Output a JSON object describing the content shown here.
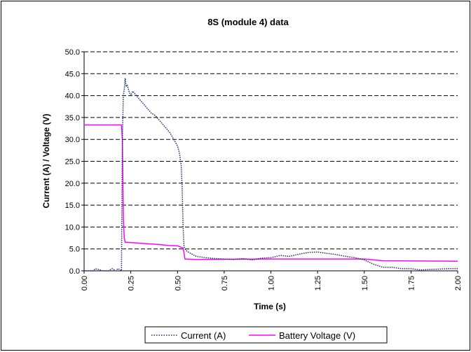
{
  "chart_data": {
    "type": "line",
    "title": "8S (module 4) data",
    "xlabel": "Time (s)",
    "ylabel": "Current (A) / Voltage (V)",
    "xlim": [
      0,
      2.0
    ],
    "ylim": [
      0,
      50
    ],
    "x_ticks": [
      "0.00",
      "0.25",
      "0.50",
      "0.75",
      "1.00",
      "1.25",
      "1.50",
      "1.75",
      "2.00"
    ],
    "y_ticks": [
      "0.0",
      "5.0",
      "10.0",
      "15.0",
      "20.0",
      "25.0",
      "30.0",
      "35.0",
      "40.0",
      "45.0",
      "50.0"
    ],
    "grid": "horizontal dashed",
    "legend_position": "bottom",
    "series": [
      {
        "name": "Current (A)",
        "color": "#1a2a6c",
        "style": "dotted",
        "x": [
          0.0,
          0.05,
          0.06,
          0.1,
          0.13,
          0.15,
          0.17,
          0.18,
          0.19,
          0.2,
          0.205,
          0.21,
          0.215,
          0.22,
          0.225,
          0.23,
          0.24,
          0.25,
          0.26,
          0.27,
          0.28,
          0.3,
          0.32,
          0.34,
          0.36,
          0.38,
          0.4,
          0.42,
          0.44,
          0.46,
          0.48,
          0.5,
          0.51,
          0.52,
          0.525,
          0.53,
          0.535,
          0.54,
          0.55,
          0.57,
          0.6,
          0.65,
          0.7,
          0.75,
          0.8,
          0.85,
          0.9,
          0.95,
          1.0,
          1.05,
          1.1,
          1.15,
          1.2,
          1.25,
          1.3,
          1.35,
          1.4,
          1.45,
          1.5,
          1.55,
          1.6,
          1.65,
          1.7,
          1.75,
          1.8,
          1.85,
          1.9,
          1.95,
          2.0
        ],
        "values": [
          0.0,
          0.0,
          0.5,
          0.0,
          0.0,
          0.5,
          0.0,
          0.5,
          0.3,
          0.0,
          30.0,
          40.0,
          41.5,
          44.0,
          42.0,
          42.5,
          41.0,
          40.0,
          41.0,
          40.5,
          40.0,
          39.0,
          38.0,
          37.0,
          36.0,
          35.5,
          34.5,
          33.5,
          32.5,
          31.5,
          30.0,
          28.5,
          27.0,
          24.0,
          19.0,
          10.0,
          5.5,
          5.0,
          4.5,
          4.0,
          3.3,
          3.0,
          2.8,
          2.7,
          2.6,
          2.8,
          2.5,
          2.9,
          3.0,
          3.5,
          3.3,
          3.8,
          4.2,
          4.3,
          4.0,
          3.7,
          3.3,
          3.0,
          2.5,
          1.5,
          0.8,
          0.8,
          0.5,
          0.5,
          0.2,
          0.3,
          0.4,
          0.5,
          0.5
        ]
      },
      {
        "name": "Battery Voltage (V)",
        "color": "#ff00ff",
        "style": "solid",
        "x": [
          0.0,
          0.2,
          0.205,
          0.21,
          0.215,
          0.22,
          0.23,
          0.3,
          0.4,
          0.45,
          0.5,
          0.53,
          0.535,
          0.54,
          0.6,
          1.0,
          1.5,
          1.6,
          2.0
        ],
        "values": [
          33.3,
          33.3,
          30.0,
          12.0,
          7.5,
          6.5,
          6.5,
          6.3,
          6.0,
          5.8,
          5.7,
          5.2,
          4.0,
          2.7,
          2.6,
          2.7,
          2.7,
          2.3,
          2.2
        ]
      }
    ]
  }
}
